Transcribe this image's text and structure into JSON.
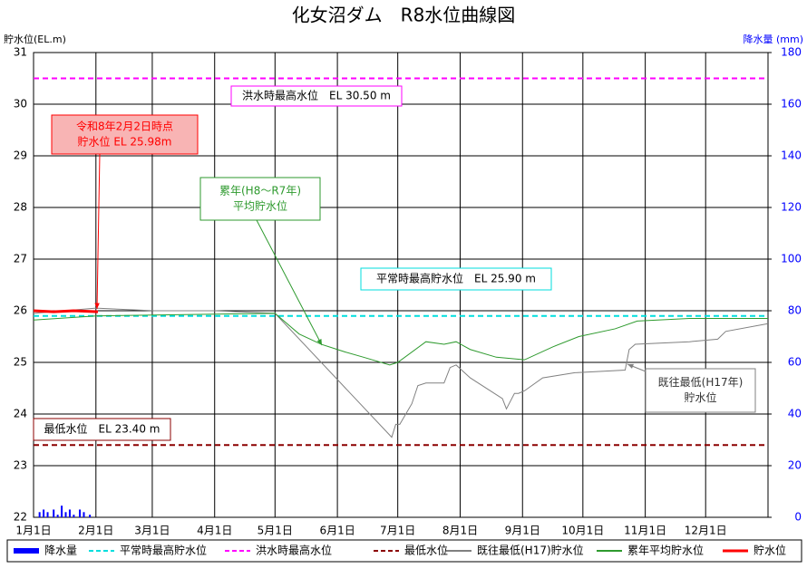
{
  "chart_data": {
    "type": "line",
    "title": "化女沼ダム　R8水位曲線図",
    "ylabel": "貯水位(EL.m)",
    "y2label": "降水量 (mm)",
    "xlim": [
      0,
      365
    ],
    "xticks": [
      {
        "value": 0,
        "label": "1月1日"
      },
      {
        "value": 31,
        "label": "2月1日"
      },
      {
        "value": 59,
        "label": "3月1日"
      },
      {
        "value": 90,
        "label": "4月1日"
      },
      {
        "value": 120,
        "label": "5月1日"
      },
      {
        "value": 151,
        "label": "6月1日"
      },
      {
        "value": 181,
        "label": "7月1日"
      },
      {
        "value": 212,
        "label": "8月1日"
      },
      {
        "value": 243,
        "label": "9月1日"
      },
      {
        "value": 273,
        "label": "10月1日"
      },
      {
        "value": 304,
        "label": "11月1日"
      },
      {
        "value": 334,
        "label": "12月1日"
      }
    ],
    "ylim": [
      22,
      31
    ],
    "yticks": [
      22,
      23,
      24,
      25,
      26,
      27,
      28,
      29,
      30,
      31
    ],
    "y2lim": [
      0,
      180
    ],
    "y2ticks": [
      0,
      20,
      40,
      60,
      80,
      100,
      120,
      140,
      160,
      180
    ],
    "grid": true,
    "legend": "bottom",
    "series": [
      {
        "name": "降水量",
        "type": "bar",
        "axis": "y2",
        "color": "#0000ff",
        "x": [
          3,
          5,
          7,
          10,
          12,
          14,
          16,
          18,
          20,
          23,
          25,
          28
        ],
        "values": [
          2,
          3,
          2,
          3,
          1,
          4.5,
          2,
          3,
          1,
          3,
          2,
          1
        ]
      },
      {
        "name": "平常時最高貯水位",
        "type": "line",
        "dash": true,
        "color": "#00dede",
        "x": [
          0,
          365
        ],
        "values": [
          25.9,
          25.9
        ]
      },
      {
        "name": "洪水時最高水位",
        "type": "line",
        "dash": true,
        "color": "#ff00ff",
        "x": [
          0,
          365
        ],
        "values": [
          30.5,
          30.5
        ]
      },
      {
        "name": "最低水位",
        "type": "line",
        "dash": true,
        "color": "#8b0000",
        "x": [
          0,
          365
        ],
        "values": [
          23.4,
          23.4
        ]
      },
      {
        "name": "既往最低(H17)貯水位",
        "type": "line",
        "color": "#808080",
        "x": [
          0,
          31,
          60,
          90,
          120,
          178,
          180,
          182,
          188,
          191,
          195,
          204,
          207,
          210,
          217,
          233,
          235,
          239,
          241,
          244,
          253,
          269,
          294,
          296,
          299,
          326,
          340,
          344,
          365
        ],
        "values": [
          25.95,
          26.05,
          26.0,
          26.0,
          25.95,
          23.55,
          23.8,
          23.8,
          24.2,
          24.55,
          24.6,
          24.6,
          24.9,
          24.95,
          24.7,
          24.3,
          24.1,
          24.4,
          24.4,
          24.45,
          24.7,
          24.8,
          24.85,
          25.25,
          25.35,
          25.4,
          25.45,
          25.6,
          25.75
        ]
      },
      {
        "name": "累年平均貯水位",
        "type": "line",
        "color": "#2e9a2e",
        "x": [
          0,
          31,
          120,
          132,
          143,
          155,
          164,
          177,
          181,
          195,
          204,
          210,
          217,
          230,
          244,
          258,
          271,
          289,
          300,
          326,
          365
        ],
        "values": [
          25.82,
          25.9,
          25.95,
          25.55,
          25.35,
          25.2,
          25.1,
          24.95,
          25.0,
          25.4,
          25.35,
          25.4,
          25.25,
          25.1,
          25.05,
          25.3,
          25.5,
          25.65,
          25.8,
          25.85,
          25.85
        ]
      },
      {
        "name": "貯水位",
        "type": "line",
        "width": 3,
        "color": "#ff0000",
        "x": [
          0,
          10,
          20,
          32
        ],
        "values": [
          26.0,
          25.98,
          26.0,
          25.98
        ]
      }
    ],
    "annotations": [
      {
        "lines": [
          "洪水時最高水位　EL 30.50 m"
        ],
        "color": "#000000",
        "border": "#ff00ff"
      },
      {
        "lines": [
          "令和8年2月2日時点",
          "貯水位 EL 25.98m"
        ],
        "color": "#ff0000",
        "border": "#ff0000",
        "background": "#f8b4b4"
      },
      {
        "lines": [
          "累年(H8～R7年)",
          "平均貯水位"
        ],
        "color": "#2e9a2e",
        "border": "#2e9a2e"
      },
      {
        "lines": [
          "平常時最高貯水位　EL 25.90 m"
        ],
        "color": "#000000",
        "border": "#00dede"
      },
      {
        "lines": [
          "既往最低(H17年)",
          "貯水位"
        ],
        "color": "#333333",
        "border": "#808080"
      },
      {
        "lines": [
          "最低水位　EL 23.40 m"
        ],
        "color": "#000000",
        "border": "#8b0000"
      }
    ]
  }
}
